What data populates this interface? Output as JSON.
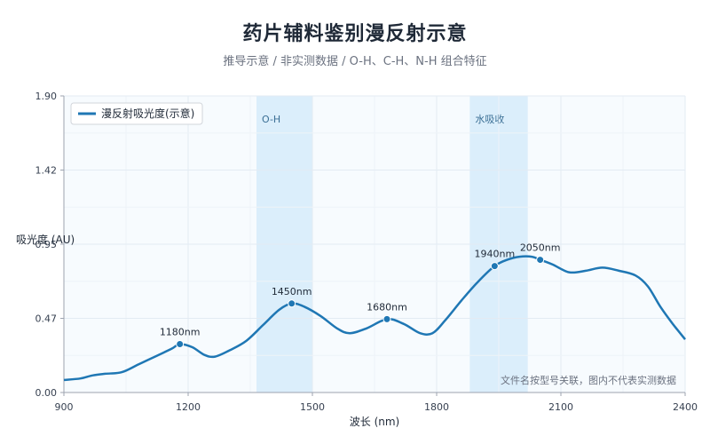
{
  "header": {
    "title": "药片辅料鉴别漫反射示意",
    "subtitle": "推导示意 / 非实测数据 / O-H、C-H、N-H 组合特征"
  },
  "chart_data": {
    "type": "line",
    "xlabel": "波长 (nm)",
    "ylabel": "吸光度 (AU)",
    "xlim": [
      900,
      2400
    ],
    "ylim": [
      0,
      1.9
    ],
    "x_ticks": [
      900,
      1200,
      1500,
      1800,
      2100,
      2400
    ],
    "y_ticks": [
      "0.00",
      "0.47",
      "0.95",
      "1.42",
      "1.90"
    ],
    "y_tick_values": [
      0,
      0.475,
      0.95,
      1.425,
      1.9
    ],
    "grid": true,
    "legend_position": "top-left",
    "series": [
      {
        "name": "漫反射吸光度(示意)",
        "color": "#1f77b4",
        "x": [
          900,
          940,
          970,
          1000,
          1040,
          1080,
          1120,
          1160,
          1180,
          1210,
          1240,
          1265,
          1300,
          1340,
          1380,
          1420,
          1450,
          1480,
          1520,
          1560,
          1590,
          1630,
          1680,
          1720,
          1760,
          1790,
          1820,
          1860,
          1900,
          1940,
          1970,
          2000,
          2030,
          2050,
          2080,
          2120,
          2160,
          2200,
          2240,
          2280,
          2310,
          2340,
          2370,
          2400
        ],
        "y": [
          0.08,
          0.09,
          0.11,
          0.12,
          0.13,
          0.18,
          0.23,
          0.28,
          0.31,
          0.29,
          0.24,
          0.23,
          0.27,
          0.33,
          0.43,
          0.53,
          0.57,
          0.55,
          0.49,
          0.41,
          0.38,
          0.41,
          0.47,
          0.44,
          0.38,
          0.38,
          0.46,
          0.59,
          0.71,
          0.81,
          0.85,
          0.87,
          0.87,
          0.85,
          0.82,
          0.77,
          0.78,
          0.8,
          0.78,
          0.75,
          0.68,
          0.55,
          0.44,
          0.34
        ]
      }
    ],
    "markers": [
      {
        "x": 1180,
        "y": 0.31,
        "label": "1180nm"
      },
      {
        "x": 1450,
        "y": 0.57,
        "label": "1450nm"
      },
      {
        "x": 1680,
        "y": 0.47,
        "label": "1680nm"
      },
      {
        "x": 1940,
        "y": 0.81,
        "label": "1940nm"
      },
      {
        "x": 2050,
        "y": 0.85,
        "label": "2050nm"
      }
    ],
    "bands": [
      {
        "x_start": 1365,
        "x_end": 1500,
        "label": "O-H"
      },
      {
        "x_start": 1880,
        "x_end": 2020,
        "label": "水吸收"
      }
    ],
    "annotations": [
      "文件名按型号关联，图内不代表实测数据"
    ],
    "colors": {
      "band": "#dbeefb",
      "grid": "#e3ebf3",
      "plot_bg": "#f7fbfe"
    }
  }
}
